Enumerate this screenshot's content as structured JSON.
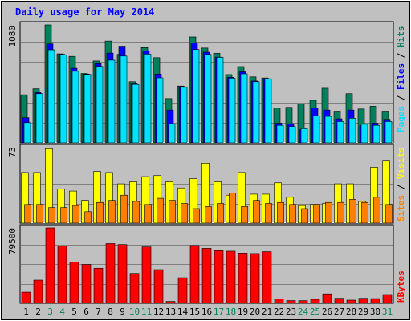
{
  "colors": {
    "background": "#c0c0c0",
    "panel": "#c0c0c0",
    "grid": "#808080",
    "title": "#0000ff",
    "hits": "#00805c",
    "files": "#0000ff",
    "pages": "#00e0ff",
    "visits": "#ffff00",
    "sites": "#ff8000",
    "kbytes": "#ff0000",
    "weekend_label": "#00805c",
    "weekday_label": "#000000"
  },
  "chart_data": [
    {
      "type": "bar",
      "title": "Daily usage for May 2014",
      "ymax_label": "1080",
      "ylim": [
        0,
        1080
      ],
      "grid": true,
      "right_labels": [
        "Pages",
        "Files",
        "Hits"
      ],
      "categories": [
        "1",
        "2",
        "3",
        "4",
        "5",
        "6",
        "7",
        "8",
        "9",
        "10",
        "11",
        "12",
        "13",
        "14",
        "15",
        "16",
        "17",
        "18",
        "19",
        "20",
        "21",
        "22",
        "23",
        "24",
        "25",
        "26",
        "27",
        "28",
        "29",
        "30",
        "31"
      ],
      "weekend_days": [
        3,
        4,
        10,
        11,
        17,
        18,
        24,
        25,
        31
      ],
      "series": [
        {
          "name": "Hits",
          "values": [
            440,
            495,
            1080,
            815,
            792,
            635,
            750,
            932,
            810,
            560,
            872,
            780,
            405,
            520,
            970,
            868,
            820,
            625,
            698,
            604,
            594,
            320,
            325,
            355,
            390,
            500,
            290,
            450,
            310,
            335,
            290
          ]
        },
        {
          "name": "Files",
          "values": [
            230,
            460,
            906,
            810,
            683,
            630,
            725,
            822,
            885,
            540,
            840,
            630,
            300,
            515,
            914,
            830,
            785,
            600,
            650,
            566,
            587,
            180,
            175,
            120,
            320,
            300,
            220,
            300,
            155,
            180,
            215
          ]
        },
        {
          "name": "Pages",
          "values": [
            185,
            450,
            852,
            805,
            655,
            627,
            700,
            757,
            795,
            535,
            812,
            595,
            175,
            508,
            854,
            810,
            783,
            592,
            632,
            560,
            586,
            160,
            150,
            130,
            245,
            242,
            195,
            225,
            170,
            160,
            195
          ]
        }
      ]
    },
    {
      "type": "bar",
      "ymax_label": "73",
      "ylim": [
        0,
        73
      ],
      "grid": true,
      "right_labels": [
        "Sites",
        "Visits"
      ],
      "categories": [
        "1",
        "2",
        "3",
        "4",
        "5",
        "6",
        "7",
        "8",
        "9",
        "10",
        "11",
        "12",
        "13",
        "14",
        "15",
        "16",
        "17",
        "18",
        "19",
        "20",
        "21",
        "22",
        "23",
        "24",
        "25",
        "26",
        "27",
        "28",
        "29",
        "30",
        "31"
      ],
      "series": [
        {
          "name": "Visits",
          "values": [
            49,
            49,
            72,
            33,
            31,
            22,
            50,
            49,
            38,
            40,
            45,
            46,
            40,
            34,
            43,
            58,
            40,
            27,
            49,
            28,
            28,
            39,
            25,
            17,
            18,
            19,
            38,
            38,
            21,
            54,
            60
          ]
        },
        {
          "name": "Sites",
          "values": [
            18,
            18,
            15,
            15,
            17,
            11,
            20,
            22,
            27,
            21,
            18,
            24,
            22,
            19,
            14,
            16,
            19,
            29,
            16,
            22,
            19,
            20,
            18,
            14,
            18,
            20,
            20,
            23,
            20,
            25,
            18
          ]
        }
      ]
    },
    {
      "type": "bar",
      "ymax_label": "79500",
      "ylim": [
        0,
        79500
      ],
      "grid": true,
      "right_labels": [
        "KBytes"
      ],
      "categories": [
        "1",
        "2",
        "3",
        "4",
        "5",
        "6",
        "7",
        "8",
        "9",
        "10",
        "11",
        "12",
        "13",
        "14",
        "15",
        "16",
        "17",
        "18",
        "19",
        "20",
        "21",
        "22",
        "23",
        "24",
        "25",
        "26",
        "27",
        "28",
        "29",
        "30",
        "31"
      ],
      "weekend_days": [
        3,
        4,
        10,
        11,
        17,
        18,
        24,
        25,
        31
      ],
      "series": [
        {
          "name": "KBytes",
          "values": [
            11800,
            24500,
            79500,
            60500,
            43500,
            41000,
            37000,
            63000,
            62000,
            31500,
            59500,
            35500,
            2000,
            27000,
            61000,
            58000,
            55500,
            55000,
            53000,
            52500,
            54500,
            4500,
            2900,
            2800,
            4200,
            10000,
            5300,
            3400,
            5300,
            5000,
            9300
          ]
        }
      ]
    }
  ]
}
